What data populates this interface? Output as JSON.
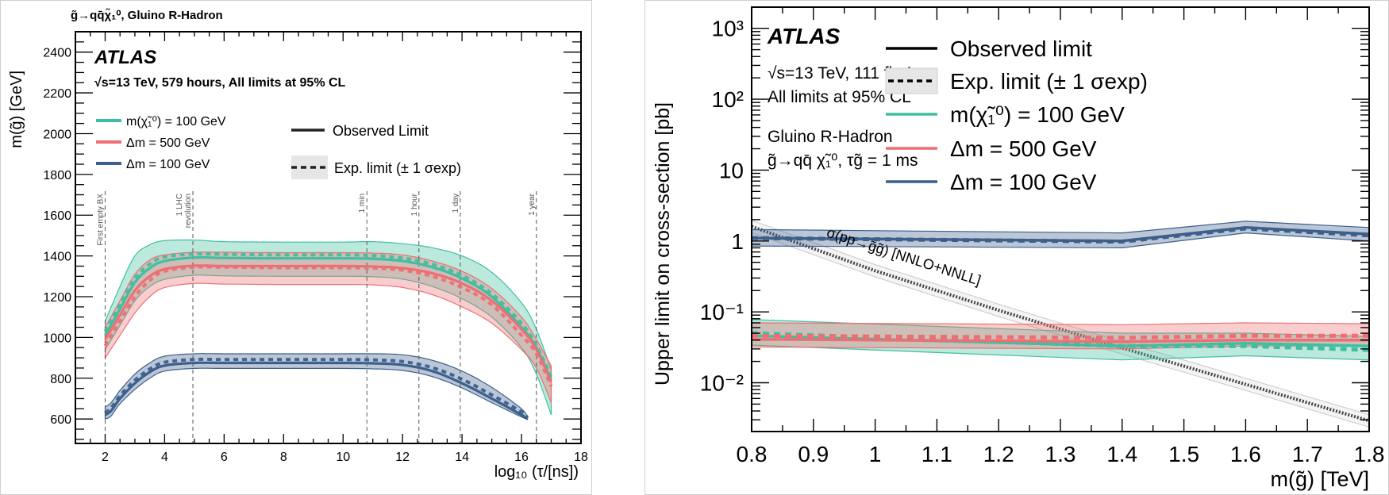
{
  "chart_data": [
    {
      "type": "line",
      "panel": "left",
      "title": "g̃→qq̄χ̃₁⁰, Gluino R-Hadron",
      "experiment_label": "ATLAS",
      "subtitle": "√s=13 TeV, 579 hours, All limits at 95% CL",
      "xlabel": "log₁₀ (τ/[ns])",
      "ylabel": "m(g̃) [GeV]",
      "xlim": [
        1,
        18
      ],
      "ylim": [
        480,
        2500
      ],
      "xticks": [
        2,
        4,
        6,
        8,
        10,
        12,
        14,
        16,
        18
      ],
      "yticks": [
        600,
        800,
        1000,
        1200,
        1400,
        1600,
        1800,
        2000,
        2200,
        2400
      ],
      "grid": false,
      "legend_models": [
        {
          "label": "m(χ̃₁⁰) = 100 GeV",
          "color": "#3fbfa0"
        },
        {
          "label": "Δm = 500 GeV",
          "color": "#ee6f73"
        },
        {
          "label": "Δm = 100 GeV",
          "color": "#3d5f8c"
        }
      ],
      "legend_styles": [
        {
          "label": "Observed Limit",
          "style": "solid"
        },
        {
          "label": "Exp. limit (± 1 σexp)",
          "style": "dashed-band"
        }
      ],
      "legend_placement": "top-left",
      "reference_lines": [
        {
          "x": 2.0,
          "label": "First empty BX"
        },
        {
          "x": 4.95,
          "label": "1 LHC revolution"
        },
        {
          "x": 10.8,
          "label": "1 min"
        },
        {
          "x": 12.55,
          "label": "1 hour"
        },
        {
          "x": 13.94,
          "label": "1 day"
        },
        {
          "x": 16.5,
          "label": "1 year"
        }
      ],
      "series": [
        {
          "name": "m(χ̃₁⁰) = 100 GeV",
          "color": "#3fbfa0",
          "x": [
            2.0,
            2.5,
            3.0,
            3.5,
            4.0,
            5.0,
            6.0,
            8.0,
            10.0,
            11.0,
            12.0,
            13.0,
            14.0,
            15.0,
            16.0,
            16.5,
            17.0
          ],
          "observed": [
            1010,
            1140,
            1270,
            1340,
            1375,
            1392,
            1390,
            1388,
            1388,
            1386,
            1375,
            1345,
            1290,
            1200,
            1050,
            950,
            790
          ],
          "expected": [
            1030,
            1160,
            1290,
            1360,
            1395,
            1410,
            1408,
            1405,
            1405,
            1402,
            1390,
            1360,
            1305,
            1215,
            1070,
            960,
            805
          ],
          "band_lo": [
            940,
            1060,
            1180,
            1250,
            1285,
            1305,
            1302,
            1300,
            1300,
            1298,
            1286,
            1250,
            1190,
            1100,
            950,
            820,
            620
          ],
          "band_hi": [
            1080,
            1250,
            1400,
            1455,
            1475,
            1478,
            1470,
            1468,
            1468,
            1470,
            1460,
            1440,
            1400,
            1320,
            1170,
            1040,
            840
          ]
        },
        {
          "name": "Δm = 500 GeV",
          "color": "#ee6f73",
          "x": [
            2.0,
            2.5,
            3.0,
            3.5,
            4.0,
            5.0,
            6.0,
            8.0,
            10.0,
            11.0,
            12.0,
            13.0,
            14.0,
            15.0,
            16.0,
            16.5,
            17.0
          ],
          "observed": [
            990,
            1110,
            1230,
            1300,
            1335,
            1352,
            1350,
            1350,
            1350,
            1348,
            1340,
            1315,
            1265,
            1180,
            1040,
            940,
            780
          ],
          "expected": [
            960,
            1080,
            1200,
            1280,
            1325,
            1345,
            1345,
            1342,
            1342,
            1340,
            1330,
            1300,
            1245,
            1160,
            1010,
            920,
            760
          ],
          "band_lo": [
            900,
            1010,
            1120,
            1200,
            1245,
            1265,
            1262,
            1260,
            1260,
            1258,
            1245,
            1210,
            1150,
            1070,
            940,
            850,
            680
          ],
          "band_hi": [
            1050,
            1180,
            1310,
            1380,
            1405,
            1418,
            1418,
            1416,
            1416,
            1414,
            1405,
            1375,
            1325,
            1240,
            1100,
            990,
            860
          ]
        },
        {
          "name": "Δm = 100 GeV",
          "color": "#3d5f8c",
          "x": [
            2.0,
            2.2,
            2.5,
            3.0,
            3.5,
            4.0,
            5.0,
            6.0,
            8.0,
            10.0,
            11.0,
            12.0,
            13.0,
            14.0,
            15.0,
            16.0,
            16.2
          ],
          "observed": [
            620,
            640,
            700,
            775,
            830,
            862,
            875,
            875,
            875,
            875,
            873,
            865,
            835,
            775,
            700,
            620,
            600
          ],
          "expected": [
            630,
            655,
            715,
            790,
            845,
            878,
            892,
            892,
            892,
            892,
            890,
            882,
            852,
            795,
            718,
            635,
            605
          ],
          "band_lo": [
            600,
            615,
            675,
            745,
            800,
            835,
            848,
            848,
            848,
            848,
            846,
            838,
            808,
            752,
            680,
            610,
            598
          ],
          "band_hi": [
            660,
            680,
            740,
            820,
            875,
            908,
            920,
            920,
            920,
            920,
            920,
            915,
            888,
            835,
            755,
            650,
            605
          ]
        }
      ]
    },
    {
      "type": "line",
      "panel": "right",
      "experiment_label": "ATLAS",
      "subtitle_lines": [
        "√s=13 TeV, 111 fb⁻¹",
        "All limits at 95% CL"
      ],
      "model_lines": [
        "Gluino R-Hadron",
        "g̃→qq̄ χ̃₁⁰, τg̃ = 1 ms"
      ],
      "xlabel": "m(g̃) [TeV]",
      "ylabel": "Upper limit on cross-section [pb]",
      "xscale": "linear",
      "yscale": "log",
      "xlim": [
        0.8,
        1.8
      ],
      "ylim": [
        0.00205,
        1990
      ],
      "xticks": [
        0.8,
        0.9,
        1,
        1.1,
        1.2,
        1.3,
        1.4,
        1.5,
        1.6,
        1.7,
        1.8
      ],
      "xtick_labels": [
        "0.8",
        "0.9",
        "1",
        "1.1",
        "1.2",
        "1.3",
        "1.4",
        "1.5",
        "1.6",
        "1.7",
        "1.8"
      ],
      "yticks": [
        0.01,
        0.1,
        1,
        10,
        100,
        1000
      ],
      "ytick_labels": [
        "10⁻²",
        "10⁻¹",
        "1",
        "10",
        "10²",
        "10³"
      ],
      "grid": false,
      "legend_placement": "top-right",
      "legend": [
        {
          "label": "Observed limit",
          "style": "solid",
          "color": "#000000"
        },
        {
          "label": "Exp. limit (± 1 σexp)",
          "style": "dashed-band",
          "color": "#000000"
        },
        {
          "label": "m(χ̃₁⁰) = 100 GeV",
          "style": "solid",
          "color": "#3fbfa0"
        },
        {
          "label": "Δm = 500 GeV",
          "style": "solid",
          "color": "#ee6f73"
        },
        {
          "label": "Δm = 100 GeV",
          "style": "solid",
          "color": "#3d5f8c"
        }
      ],
      "theory": {
        "label": "σ(pp→g̃g̃) [NNLO+NNLL]",
        "x": [
          0.8,
          1.0,
          1.2,
          1.4,
          1.6,
          1.8
        ],
        "y": [
          1.6,
          0.38,
          0.105,
          0.031,
          0.0095,
          0.0029
        ]
      },
      "series": [
        {
          "name": "m(χ̃₁⁰) = 100 GeV",
          "color": "#3fbfa0",
          "x": [
            0.8,
            1.4,
            1.6,
            1.8
          ],
          "observed": [
            0.046,
            0.033,
            0.036,
            0.033
          ],
          "expected": [
            0.05,
            0.033,
            0.033,
            0.029
          ],
          "band_lo": [
            0.034,
            0.021,
            0.024,
            0.021
          ],
          "band_hi": [
            0.078,
            0.05,
            0.05,
            0.045
          ]
        },
        {
          "name": "Δm = 500 GeV",
          "color": "#ee6f73",
          "x": [
            0.8,
            1.4,
            1.6,
            1.8
          ],
          "observed": [
            0.041,
            0.038,
            0.04,
            0.04
          ],
          "expected": [
            0.046,
            0.043,
            0.046,
            0.046
          ],
          "band_lo": [
            0.032,
            0.03,
            0.033,
            0.033
          ],
          "band_hi": [
            0.07,
            0.066,
            0.07,
            0.068
          ]
        },
        {
          "name": "Δm = 100 GeV",
          "color": "#3d5f8c",
          "x": [
            0.8,
            1.4,
            1.6,
            1.8
          ],
          "observed": [
            1.1,
            1.0,
            1.55,
            1.25
          ],
          "expected": [
            1.1,
            0.98,
            1.5,
            1.2
          ],
          "band_lo": [
            0.85,
            0.8,
            1.3,
            1.0
          ],
          "band_hi": [
            1.45,
            1.3,
            1.9,
            1.55
          ]
        }
      ]
    }
  ]
}
